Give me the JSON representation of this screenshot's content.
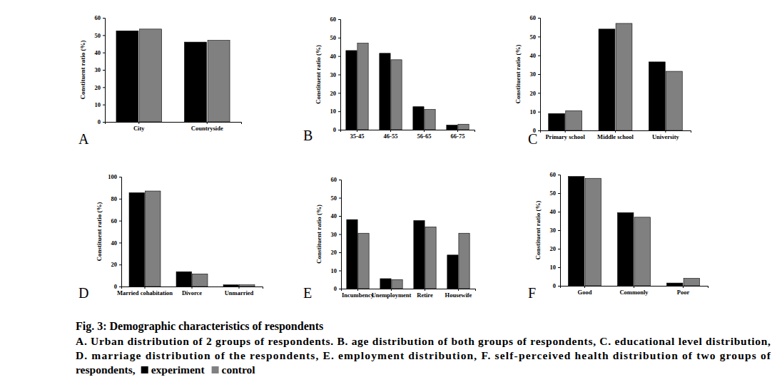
{
  "chart_data": [
    {
      "type": "bar",
      "title": "A",
      "ylabel": "Constituent ratio (%)",
      "categories": [
        "City",
        "Countryside"
      ],
      "series": [
        {
          "name": "experiment",
          "color": "#000000",
          "values": [
            52.5,
            46
          ]
        },
        {
          "name": "control",
          "color": "#808080",
          "values": [
            53.5,
            47
          ]
        }
      ],
      "ylim": [
        0,
        60
      ],
      "yticks": [
        0,
        10,
        20,
        30,
        40,
        50,
        60
      ]
    },
    {
      "type": "bar",
      "title": "B",
      "ylabel": "Constituent ratio (%)",
      "categories": [
        "35-45",
        "46-55",
        "56-65",
        "66-75"
      ],
      "series": [
        {
          "name": "experiment",
          "color": "#000000",
          "values": [
            43,
            41.5,
            12.5,
            2.5
          ]
        },
        {
          "name": "control",
          "color": "#808080",
          "values": [
            47,
            38,
            11,
            3
          ]
        }
      ],
      "ylim": [
        0,
        60
      ],
      "yticks": [
        0,
        10,
        20,
        30,
        40,
        50,
        60
      ]
    },
    {
      "type": "bar",
      "title": "C",
      "ylabel": "Constituent ratio (%)",
      "categories": [
        "Primary school",
        "Middle school",
        "University"
      ],
      "series": [
        {
          "name": "experiment",
          "color": "#000000",
          "values": [
            9,
            54,
            36.5
          ]
        },
        {
          "name": "control",
          "color": "#808080",
          "values": [
            10.5,
            57,
            31.5
          ]
        }
      ],
      "ylim": [
        0,
        60
      ],
      "yticks": [
        0,
        10,
        20,
        30,
        40,
        50,
        60
      ]
    },
    {
      "type": "bar",
      "title": "D",
      "ylabel": "Constituent ratio (%)",
      "categories": [
        "Married cohabitation",
        "Divorce",
        "Unmarried"
      ],
      "series": [
        {
          "name": "experiment",
          "color": "#000000",
          "values": [
            85.5,
            13.5,
            1.5
          ]
        },
        {
          "name": "control",
          "color": "#808080",
          "values": [
            87,
            11.5,
            1.5
          ]
        }
      ],
      "ylim": [
        0,
        100
      ],
      "yticks": [
        0,
        20,
        40,
        60,
        80,
        100
      ]
    },
    {
      "type": "bar",
      "title": "E",
      "ylabel": "Constituent ratio (%)",
      "categories": [
        "Incumbency",
        "Unemployment",
        "Retire",
        "Housewife"
      ],
      "series": [
        {
          "name": "experiment",
          "color": "#000000",
          "values": [
            38,
            5.5,
            37.5,
            18.5
          ]
        },
        {
          "name": "control",
          "color": "#808080",
          "values": [
            30.5,
            5,
            34,
            30.5
          ]
        }
      ],
      "ylim": [
        0,
        60
      ],
      "yticks": [
        0,
        10,
        20,
        30,
        40,
        50,
        60
      ]
    },
    {
      "type": "bar",
      "title": "F",
      "ylabel": "Constituent ratio (%)",
      "categories": [
        "Good",
        "Commonly",
        "Poor"
      ],
      "series": [
        {
          "name": "experiment",
          "color": "#000000",
          "values": [
            59,
            39.5,
            1.5
          ]
        },
        {
          "name": "control",
          "color": "#808080",
          "values": [
            58,
            37,
            4
          ]
        }
      ],
      "ylim": [
        0,
        60
      ],
      "yticks": [
        0,
        10,
        20,
        30,
        40,
        50,
        60
      ]
    }
  ],
  "caption": {
    "title": "Fig. 3: Demographic characteristics of respondents",
    "lines": [
      "A. Urban distribution of 2 groups of respondents. B. age distribution of both groups of respondents, C. educational level distribution,",
      "D. marriage distribution of the respondents, E. employment distribution, F. self-perceived health distribution of two groups of",
      "respondents,"
    ]
  }
}
